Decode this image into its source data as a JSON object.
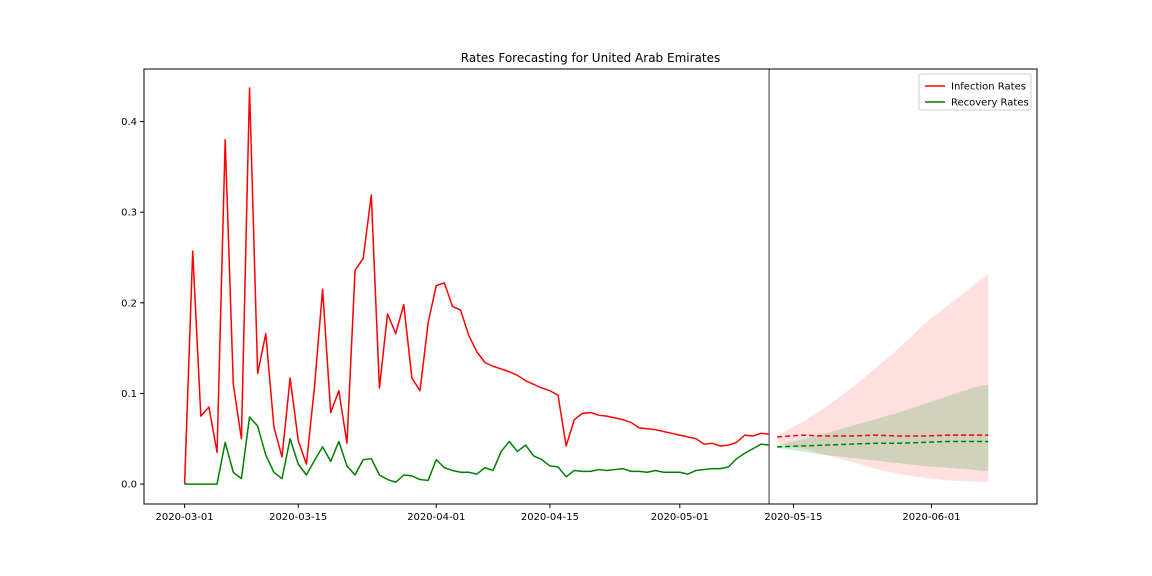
{
  "chart_data": {
    "type": "line",
    "title": "Rates Forecasting for United Arab Emirates",
    "xlabel": "",
    "ylabel": "",
    "x_start": "2020-02-25",
    "x_end": "2020-06-14",
    "x_ticks": [
      "2020-03-01",
      "2020-03-15",
      "2020-04-01",
      "2020-04-15",
      "2020-05-01",
      "2020-05-15",
      "2020-06-01"
    ],
    "ylim": [
      -0.022,
      0.458
    ],
    "y_ticks": [
      0.0,
      0.1,
      0.2,
      0.3,
      0.4
    ],
    "y_tick_labels": [
      "0.0",
      "0.1",
      "0.2",
      "0.3",
      "0.4"
    ],
    "grid": false,
    "legend_position": "top-right",
    "forecast_start": "2020-05-12",
    "series": [
      {
        "name": "Infection Rates",
        "color": "#ff0000",
        "style": "solid",
        "dates": [
          "2020-03-01",
          "2020-03-02",
          "2020-03-03",
          "2020-03-04",
          "2020-03-05",
          "2020-03-06",
          "2020-03-07",
          "2020-03-08",
          "2020-03-09",
          "2020-03-10",
          "2020-03-11",
          "2020-03-12",
          "2020-03-13",
          "2020-03-14",
          "2020-03-15",
          "2020-03-16",
          "2020-03-17",
          "2020-03-18",
          "2020-03-19",
          "2020-03-20",
          "2020-03-21",
          "2020-03-22",
          "2020-03-23",
          "2020-03-24",
          "2020-03-25",
          "2020-03-26",
          "2020-03-27",
          "2020-03-28",
          "2020-03-29",
          "2020-03-30",
          "2020-03-31",
          "2020-04-01",
          "2020-04-02",
          "2020-04-03",
          "2020-04-04",
          "2020-04-05",
          "2020-04-06",
          "2020-04-07",
          "2020-04-08",
          "2020-04-09",
          "2020-04-10",
          "2020-04-11",
          "2020-04-12",
          "2020-04-13",
          "2020-04-14",
          "2020-04-15",
          "2020-04-16",
          "2020-04-17",
          "2020-04-18",
          "2020-04-19",
          "2020-04-20",
          "2020-04-21",
          "2020-04-22",
          "2020-04-23",
          "2020-04-24",
          "2020-04-25",
          "2020-04-26",
          "2020-04-27",
          "2020-04-28",
          "2020-04-29",
          "2020-04-30",
          "2020-05-01",
          "2020-05-02",
          "2020-05-03",
          "2020-05-04",
          "2020-05-05",
          "2020-05-06",
          "2020-05-07",
          "2020-05-08",
          "2020-05-09",
          "2020-05-10",
          "2020-05-11",
          "2020-05-12"
        ],
        "values": [
          0.0,
          0.257,
          0.075,
          0.085,
          0.035,
          0.38,
          0.11,
          0.05,
          0.437,
          0.122,
          0.166,
          0.063,
          0.03,
          0.117,
          0.048,
          0.022,
          0.107,
          0.215,
          0.079,
          0.103,
          0.045,
          0.236,
          0.249,
          0.319,
          0.106,
          0.188,
          0.166,
          0.198,
          0.117,
          0.103,
          0.178,
          0.219,
          0.222,
          0.196,
          0.192,
          0.164,
          0.146,
          0.134,
          0.13,
          0.127,
          0.124,
          0.12,
          0.114,
          0.11,
          0.106,
          0.103,
          0.098,
          0.042,
          0.071,
          0.078,
          0.079,
          0.076,
          0.075,
          0.073,
          0.071,
          0.068,
          0.062,
          0.061,
          0.06,
          0.058,
          0.056,
          0.054,
          0.052,
          0.05,
          0.044,
          0.045,
          0.042,
          0.043,
          0.046,
          0.054,
          0.053,
          0.056,
          0.055
        ]
      },
      {
        "name": "Recovery Rates",
        "color": "#008000",
        "style": "solid",
        "dates": [
          "2020-03-01",
          "2020-03-02",
          "2020-03-03",
          "2020-03-04",
          "2020-03-05",
          "2020-03-06",
          "2020-03-07",
          "2020-03-08",
          "2020-03-09",
          "2020-03-10",
          "2020-03-11",
          "2020-03-12",
          "2020-03-13",
          "2020-03-14",
          "2020-03-15",
          "2020-03-16",
          "2020-03-17",
          "2020-03-18",
          "2020-03-19",
          "2020-03-20",
          "2020-03-21",
          "2020-03-22",
          "2020-03-23",
          "2020-03-24",
          "2020-03-25",
          "2020-03-26",
          "2020-03-27",
          "2020-03-28",
          "2020-03-29",
          "2020-03-30",
          "2020-03-31",
          "2020-04-01",
          "2020-04-02",
          "2020-04-03",
          "2020-04-04",
          "2020-04-05",
          "2020-04-06",
          "2020-04-07",
          "2020-04-08",
          "2020-04-09",
          "2020-04-10",
          "2020-04-11",
          "2020-04-12",
          "2020-04-13",
          "2020-04-14",
          "2020-04-15",
          "2020-04-16",
          "2020-04-17",
          "2020-04-18",
          "2020-04-19",
          "2020-04-20",
          "2020-04-21",
          "2020-04-22",
          "2020-04-23",
          "2020-04-24",
          "2020-04-25",
          "2020-04-26",
          "2020-04-27",
          "2020-04-28",
          "2020-04-29",
          "2020-04-30",
          "2020-05-01",
          "2020-05-02",
          "2020-05-03",
          "2020-05-04",
          "2020-05-05",
          "2020-05-06",
          "2020-05-07",
          "2020-05-08",
          "2020-05-09",
          "2020-05-10",
          "2020-05-11",
          "2020-05-12"
        ],
        "values": [
          0.0,
          0.0,
          0.0,
          0.0,
          0.0,
          0.046,
          0.013,
          0.006,
          0.074,
          0.064,
          0.032,
          0.013,
          0.006,
          0.05,
          0.022,
          0.01,
          0.026,
          0.041,
          0.025,
          0.047,
          0.02,
          0.01,
          0.027,
          0.028,
          0.01,
          0.005,
          0.002,
          0.01,
          0.009,
          0.005,
          0.004,
          0.027,
          0.018,
          0.015,
          0.013,
          0.013,
          0.011,
          0.018,
          0.015,
          0.036,
          0.047,
          0.036,
          0.043,
          0.031,
          0.027,
          0.02,
          0.019,
          0.008,
          0.015,
          0.014,
          0.014,
          0.016,
          0.015,
          0.016,
          0.017,
          0.014,
          0.014,
          0.013,
          0.015,
          0.013,
          0.013,
          0.013,
          0.011,
          0.015,
          0.016,
          0.017,
          0.017,
          0.019,
          0.028,
          0.034,
          0.039,
          0.044,
          0.043
        ]
      },
      {
        "name": "Infection Rates forecast",
        "color": "#ff0000",
        "style": "dashed",
        "dates": [
          "2020-05-13",
          "2020-05-16",
          "2020-05-19",
          "2020-05-22",
          "2020-05-25",
          "2020-05-28",
          "2020-05-31",
          "2020-06-03",
          "2020-06-06",
          "2020-06-08"
        ],
        "values": [
          0.052,
          0.054,
          0.053,
          0.053,
          0.054,
          0.053,
          0.053,
          0.054,
          0.054,
          0.054
        ],
        "lower": [
          0.045,
          0.04,
          0.032,
          0.025,
          0.017,
          0.011,
          0.007,
          0.004,
          0.003,
          0.002
        ],
        "upper": [
          0.054,
          0.068,
          0.085,
          0.105,
          0.127,
          0.15,
          0.176,
          0.197,
          0.218,
          0.232
        ],
        "band_color": "#ff9999"
      },
      {
        "name": "Recovery Rates forecast",
        "color": "#008000",
        "style": "dashed",
        "dates": [
          "2020-05-13",
          "2020-05-16",
          "2020-05-19",
          "2020-05-22",
          "2020-05-25",
          "2020-05-28",
          "2020-05-31",
          "2020-06-03",
          "2020-06-06",
          "2020-06-08"
        ],
        "values": [
          0.041,
          0.042,
          0.043,
          0.044,
          0.045,
          0.045,
          0.046,
          0.047,
          0.047,
          0.047
        ],
        "lower": [
          0.04,
          0.036,
          0.032,
          0.029,
          0.026,
          0.023,
          0.02,
          0.018,
          0.016,
          0.014
        ],
        "upper": [
          0.043,
          0.049,
          0.056,
          0.064,
          0.071,
          0.079,
          0.088,
          0.097,
          0.106,
          0.11
        ],
        "band_color": "#66b266"
      }
    ],
    "legend": [
      {
        "label": "Infection Rates",
        "color": "#ff0000"
      },
      {
        "label": "Recovery Rates",
        "color": "#008000"
      }
    ]
  }
}
